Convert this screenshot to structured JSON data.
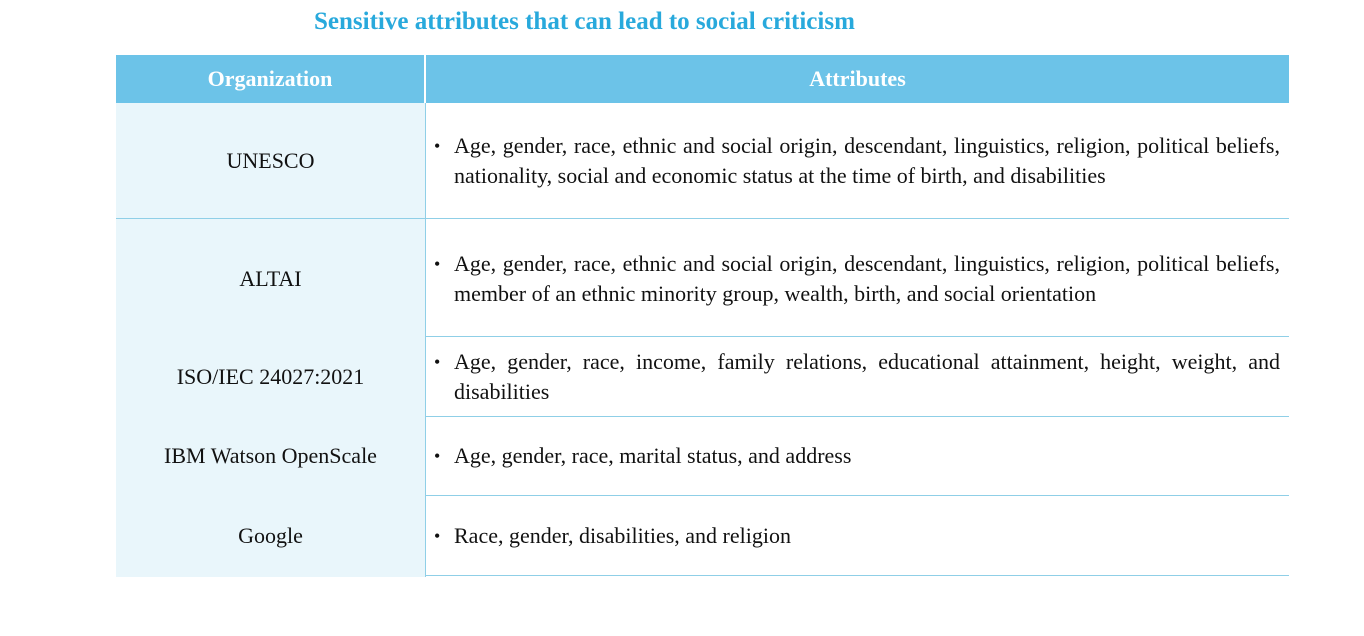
{
  "title": "Sensitive attributes that can lead to social criticism",
  "table": {
    "headers": {
      "organization": "Organization",
      "attributes": "Attributes"
    },
    "rows": [
      {
        "organization": "UNESCO",
        "bullet": "•",
        "attributes": "Age, gender, race, ethnic and social origin, descendant, linguistics, religion, political beliefs, nationality, social and economic status at the time of birth, and disabilities"
      },
      {
        "organization": "ALTAI",
        "bullet": "•",
        "attributes": "Age, gender, race, ethnic and social origin, descendant, linguistics, religion, political beliefs, member of an ethnic minority group, wealth, birth, and social orientation"
      },
      {
        "organization": "ISO/IEC 24027:2021",
        "bullet": "•",
        "attributes": "Age, gender, race, income, family relations, educational attainment, height, weight, and disabilities"
      },
      {
        "organization": "IBM Watson OpenScale",
        "bullet": "•",
        "attributes": "Age, gender, race, marital status, and address"
      },
      {
        "organization": "Google",
        "bullet": "•",
        "attributes": "Race, gender, disabilities, and religion"
      }
    ]
  },
  "colors": {
    "title": "#28a9dc",
    "header_background": "#6cc3e8",
    "organization_column_background": "#e9f6fb",
    "rule": "#8fcfe7"
  }
}
